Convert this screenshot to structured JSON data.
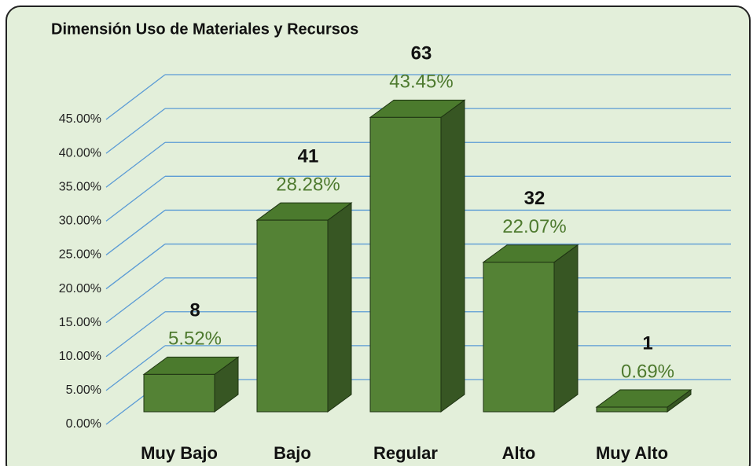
{
  "chart_data": {
    "type": "bar3d",
    "title": "Dimensión Uso de Materiales y Recursos",
    "categories": [
      "Muy Bajo",
      "Bajo",
      "Regular",
      "Alto",
      "Muy Alto"
    ],
    "values": [
      5.52,
      28.28,
      43.45,
      22.07,
      0.69
    ],
    "value_labels": [
      "5.52%",
      "28.28%",
      "43.45%",
      "22.07%",
      "0.69%"
    ],
    "counts": [
      8,
      41,
      63,
      32,
      1
    ],
    "color": "#548235",
    "ylim": [
      0,
      45
    ],
    "yticks": [
      {
        "value": 0,
        "label": "0.00%"
      },
      {
        "value": 5,
        "label": "5.00%"
      },
      {
        "value": 10,
        "label": "10.00%"
      },
      {
        "value": 15,
        "label": "15.00%"
      },
      {
        "value": 20,
        "label": "20.00%"
      },
      {
        "value": 25,
        "label": "25.00%"
      },
      {
        "value": 30,
        "label": "30.00%"
      },
      {
        "value": 35,
        "label": "35.00%"
      },
      {
        "value": 40,
        "label": "40.00%"
      },
      {
        "value": 45,
        "label": "45.00%"
      }
    ],
    "grid": true
  }
}
